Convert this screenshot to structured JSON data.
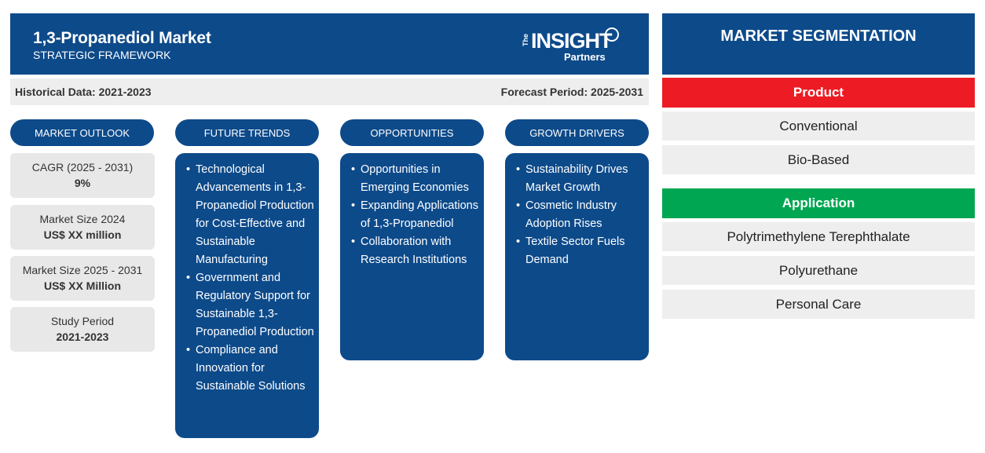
{
  "header": {
    "title": "1,3-Propanediol Market",
    "subtitle": "STRATEGIC FRAMEWORK",
    "logo": {
      "the": "The",
      "insight": "INSIGHT",
      "partners": "Partners"
    }
  },
  "subbar": {
    "historical": "Historical Data: 2021-2023",
    "forecast": "Forecast Period: 2025-2031"
  },
  "pills": {
    "outlook": "MARKET OUTLOOK",
    "trends": "FUTURE TRENDS",
    "opportunities": "OPPORTUNITIES",
    "drivers": "GROWTH DRIVERS"
  },
  "outlook": [
    {
      "label": "CAGR (2025 - 2031)",
      "value": "9%"
    },
    {
      "label": "Market Size 2024",
      "value": "US$ XX million"
    },
    {
      "label": "Market Size 2025 - 2031",
      "value": "US$ XX Million"
    },
    {
      "label": "Study Period",
      "value": "2021-2023"
    }
  ],
  "trends": [
    "Technological Advancements in 1,3-Propanediol Production for Cost-Effective and Sustainable Manufacturing",
    "Government and Regulatory Support for Sustainable 1,3-Propanediol Production",
    "Compliance and Innovation for Sustainable Solutions"
  ],
  "opportunities": [
    "Opportunities in Emerging Economies",
    "Expanding Applications of 1,3-Propanediol",
    "Collaboration with Research Institutions"
  ],
  "drivers": [
    "Sustainability Drives Market Growth",
    "Cosmetic Industry Adoption Rises",
    "Textile Sector Fuels Demand"
  ],
  "segmentation": {
    "title": "MARKET SEGMENTATION",
    "product": {
      "heading": "Product",
      "color": "#ed1c24",
      "items": [
        "Conventional",
        "Bio-Based"
      ]
    },
    "application": {
      "heading": "Application",
      "color": "#00a651",
      "items": [
        "Polytrimethylene Terephthalate",
        "Polyurethane",
        "Personal Care"
      ]
    }
  },
  "colors": {
    "primary": "#0d4a8a",
    "panel": "#eeeeee"
  }
}
